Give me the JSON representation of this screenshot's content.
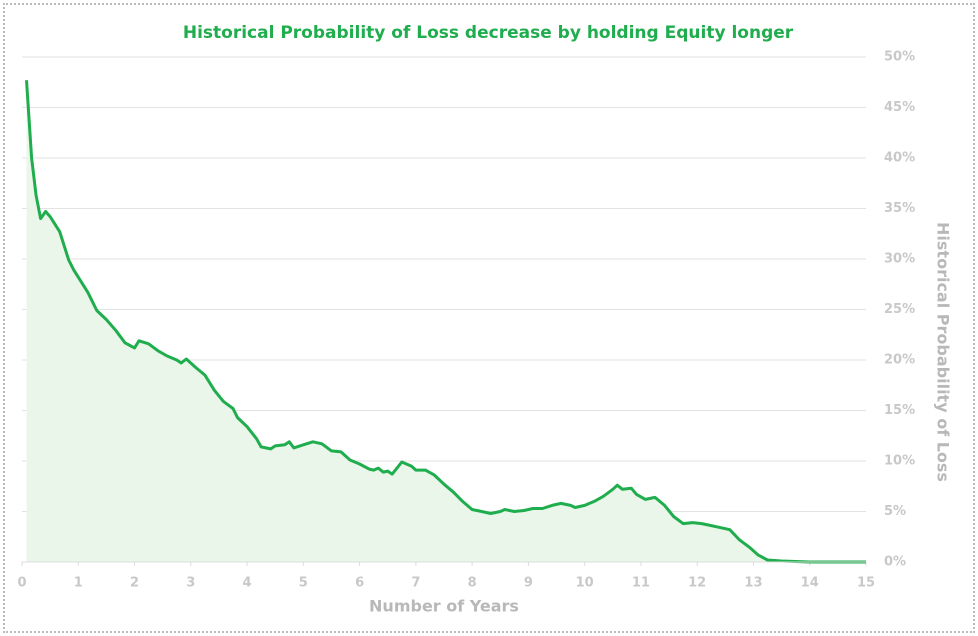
{
  "chart_data": {
    "type": "line",
    "title": "Historical Probability of Loss decrease by holding Equity longer",
    "xlabel": "Number of Years",
    "ylabel": "Historical Probability of Loss",
    "color": "#1fad4e",
    "fill": "#e9f6e9",
    "title_color": "#1fad4e",
    "x": [
      0.08,
      0.17,
      0.25,
      0.33,
      0.42,
      0.5,
      0.67,
      0.83,
      0.92,
      1.0,
      1.17,
      1.33,
      1.5,
      1.67,
      1.83,
      2.0,
      2.08,
      2.25,
      2.42,
      2.58,
      2.75,
      2.83,
      2.92,
      3.08,
      3.25,
      3.42,
      3.58,
      3.75,
      3.83,
      4.0,
      4.17,
      4.25,
      4.42,
      4.5,
      4.67,
      4.75,
      4.83,
      5.0,
      5.17,
      5.33,
      5.5,
      5.67,
      5.83,
      6.0,
      6.17,
      6.25,
      6.33,
      6.42,
      6.5,
      6.58,
      6.75,
      6.92,
      7.0,
      7.17,
      7.33,
      7.5,
      7.67,
      7.83,
      8.0,
      8.17,
      8.33,
      8.5,
      8.58,
      8.75,
      8.92,
      9.08,
      9.25,
      9.42,
      9.58,
      9.75,
      9.83,
      10.0,
      10.17,
      10.33,
      10.5,
      10.58,
      10.67,
      10.83,
      10.92,
      11.08,
      11.25,
      11.42,
      11.58,
      11.75,
      11.92,
      12.08,
      12.25,
      12.42,
      12.58,
      12.75,
      12.92,
      13.08,
      13.25,
      13.5,
      14,
      15
    ],
    "values": [
      47.7,
      40,
      36.3,
      34,
      34.7,
      34.2,
      32.7,
      29.9,
      28.9,
      28.2,
      26.7,
      24.9,
      24,
      22.9,
      21.7,
      21.2,
      21.9,
      21.6,
      20.9,
      20.4,
      20,
      19.7,
      20.1,
      19.3,
      18.5,
      17,
      15.9,
      15.2,
      14.3,
      13.4,
      12.2,
      11.4,
      11.2,
      11.5,
      11.6,
      11.9,
      11.3,
      11.6,
      11.9,
      11.7,
      11,
      10.9,
      10.1,
      9.7,
      9.2,
      9.1,
      9.3,
      8.9,
      9,
      8.7,
      9.9,
      9.5,
      9.1,
      9.1,
      8.6,
      7.7,
      6.9,
      6,
      5.2,
      5,
      4.8,
      5,
      5.2,
      5,
      5.1,
      5.3,
      5.3,
      5.6,
      5.8,
      5.6,
      5.4,
      5.6,
      6,
      6.5,
      7.2,
      7.6,
      7.2,
      7.3,
      6.7,
      6.2,
      6.4,
      5.6,
      4.5,
      3.8,
      3.9,
      3.8,
      3.6,
      3.4,
      3.2,
      2.2,
      1.5,
      0.7,
      0.2,
      0.1,
      0,
      0
    ],
    "xlim": [
      0,
      15
    ],
    "xticks": [
      0,
      1,
      2,
      3,
      4,
      5,
      6,
      7,
      8,
      9,
      10,
      11,
      12,
      13,
      14,
      15
    ],
    "ylim": [
      0,
      50
    ],
    "yticks": [
      {
        "value": 0,
        "label": "0%"
      },
      {
        "value": 5,
        "label": "5%"
      },
      {
        "value": 10,
        "label": "10%"
      },
      {
        "value": 15,
        "label": "15%"
      },
      {
        "value": 20,
        "label": "20%"
      },
      {
        "value": 25,
        "label": "25%"
      },
      {
        "value": 30,
        "label": "30%"
      },
      {
        "value": 35,
        "label": "35%"
      },
      {
        "value": 40,
        "label": "40%"
      },
      {
        "value": 45,
        "label": "45%"
      },
      {
        "value": 50,
        "label": "50%"
      }
    ],
    "grid": true
  }
}
